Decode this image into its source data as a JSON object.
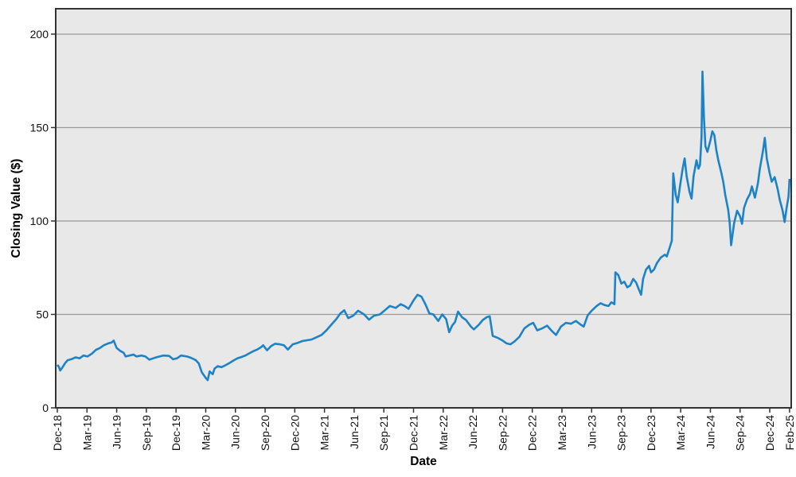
{
  "page": {
    "background": "#ffffff"
  },
  "chart_data": {
    "type": "line",
    "title": "",
    "xlabel": "Date",
    "ylabel": "Closing Value ($)",
    "x_unit": "months since Dec-2018",
    "xlim": [
      -0.16,
      74.17
    ],
    "ylim": [
      0,
      213.6
    ],
    "grid": "horizontal-only",
    "legend": "none",
    "colors": {
      "line": "#1d82c6",
      "plot_background": "#e8e8e8",
      "grid": "#999999",
      "border": "#333333",
      "tick_text": "#111111"
    },
    "line_width": 2.6,
    "y_ticks": [
      {
        "v": 0,
        "label": "0"
      },
      {
        "v": 50,
        "label": "50"
      },
      {
        "v": 100,
        "label": "100"
      },
      {
        "v": 150,
        "label": "150"
      },
      {
        "v": 200,
        "label": "200"
      }
    ],
    "x_ticks": [
      {
        "m": 0,
        "label": "Dec-18"
      },
      {
        "m": 3,
        "label": "Mar-19"
      },
      {
        "m": 6,
        "label": "Jun-19"
      },
      {
        "m": 9,
        "label": "Sep-19"
      },
      {
        "m": 12,
        "label": "Dec-19"
      },
      {
        "m": 15,
        "label": "Mar-20"
      },
      {
        "m": 18,
        "label": "Jun-20"
      },
      {
        "m": 21,
        "label": "Sep-20"
      },
      {
        "m": 24,
        "label": "Dec-20"
      },
      {
        "m": 27,
        "label": "Mar-21"
      },
      {
        "m": 30,
        "label": "Jun-21"
      },
      {
        "m": 33,
        "label": "Sep-21"
      },
      {
        "m": 36,
        "label": "Dec-21"
      },
      {
        "m": 39,
        "label": "Mar-22"
      },
      {
        "m": 42,
        "label": "Jun-22"
      },
      {
        "m": 45,
        "label": "Sep-22"
      },
      {
        "m": 48,
        "label": "Dec-22"
      },
      {
        "m": 51,
        "label": "Mar-23"
      },
      {
        "m": 54,
        "label": "Jun-23"
      },
      {
        "m": 57,
        "label": "Sep-23"
      },
      {
        "m": 60,
        "label": "Dec-23"
      },
      {
        "m": 63,
        "label": "Mar-24"
      },
      {
        "m": 66,
        "label": "Jun-24"
      },
      {
        "m": 69,
        "label": "Sep-24"
      },
      {
        "m": 72,
        "label": "Dec-24"
      },
      {
        "m": 74,
        "label": "Feb-25"
      }
    ],
    "series": [
      {
        "name": "Closing Value",
        "points": [
          [
            0,
            23
          ],
          [
            0.15,
            22
          ],
          [
            0.3,
            20
          ],
          [
            0.5,
            21.5
          ],
          [
            0.8,
            24
          ],
          [
            1.05,
            25.5
          ],
          [
            1.4,
            26
          ],
          [
            1.85,
            27
          ],
          [
            2.25,
            26.5
          ],
          [
            2.65,
            28
          ],
          [
            3.05,
            27.5
          ],
          [
            3.5,
            29
          ],
          [
            3.9,
            31
          ],
          [
            4.3,
            32
          ],
          [
            4.7,
            33.5
          ],
          [
            5.15,
            34.5
          ],
          [
            5.5,
            35
          ],
          [
            5.7,
            36
          ],
          [
            6.0,
            32
          ],
          [
            6.35,
            30.5
          ],
          [
            6.7,
            29.5
          ],
          [
            6.9,
            27.5
          ],
          [
            7.3,
            28
          ],
          [
            7.7,
            28.5
          ],
          [
            8.0,
            27.5
          ],
          [
            8.5,
            28
          ],
          [
            8.9,
            27.5
          ],
          [
            9.3,
            25.8
          ],
          [
            9.7,
            26.5
          ],
          [
            10.1,
            27.2
          ],
          [
            10.7,
            28
          ],
          [
            11.3,
            27.8
          ],
          [
            11.7,
            26
          ],
          [
            12.1,
            26.5
          ],
          [
            12.5,
            28
          ],
          [
            13.1,
            27.5
          ],
          [
            13.5,
            26.8
          ],
          [
            14.0,
            25.5
          ],
          [
            14.3,
            23.7
          ],
          [
            14.6,
            19
          ],
          [
            15.0,
            16
          ],
          [
            15.2,
            14.8
          ],
          [
            15.4,
            19.5
          ],
          [
            15.7,
            18
          ],
          [
            15.9,
            21
          ],
          [
            16.2,
            22.3
          ],
          [
            16.6,
            21.8
          ],
          [
            17.0,
            22.8
          ],
          [
            17.4,
            24
          ],
          [
            17.8,
            25.3
          ],
          [
            18.2,
            26.5
          ],
          [
            18.6,
            27.2
          ],
          [
            19.0,
            28
          ],
          [
            19.4,
            29.2
          ],
          [
            19.8,
            30.3
          ],
          [
            20.2,
            31.2
          ],
          [
            20.6,
            32.5
          ],
          [
            20.8,
            33.5
          ],
          [
            21.2,
            30.8
          ],
          [
            21.6,
            33
          ],
          [
            22.0,
            34.3
          ],
          [
            22.5,
            34
          ],
          [
            22.9,
            33.5
          ],
          [
            23.3,
            31.2
          ],
          [
            23.8,
            34
          ],
          [
            24.3,
            34.8
          ],
          [
            24.8,
            35.8
          ],
          [
            25.3,
            36.2
          ],
          [
            25.7,
            36.6
          ],
          [
            26.2,
            37.8
          ],
          [
            26.7,
            39
          ],
          [
            27.2,
            41.5
          ],
          [
            27.7,
            44.5
          ],
          [
            28.2,
            47.5
          ],
          [
            28.6,
            50.5
          ],
          [
            29.0,
            52.2
          ],
          [
            29.4,
            48
          ],
          [
            29.9,
            49.3
          ],
          [
            30.4,
            52
          ],
          [
            31.0,
            50
          ],
          [
            31.5,
            47.2
          ],
          [
            32.0,
            49.3
          ],
          [
            32.6,
            50
          ],
          [
            33.1,
            52.2
          ],
          [
            33.6,
            54.5
          ],
          [
            34.2,
            53.5
          ],
          [
            34.7,
            55.5
          ],
          [
            35.1,
            54.5
          ],
          [
            35.5,
            53
          ],
          [
            36.0,
            57.5
          ],
          [
            36.4,
            60.5
          ],
          [
            36.8,
            59.5
          ],
          [
            37.2,
            55.5
          ],
          [
            37.6,
            50.5
          ],
          [
            38.0,
            50
          ],
          [
            38.5,
            46.5
          ],
          [
            38.9,
            50
          ],
          [
            39.3,
            47.5
          ],
          [
            39.6,
            40.5
          ],
          [
            39.9,
            44
          ],
          [
            40.2,
            46
          ],
          [
            40.5,
            51.5
          ],
          [
            40.9,
            48.5
          ],
          [
            41.3,
            47
          ],
          [
            41.8,
            43.5
          ],
          [
            42.1,
            42
          ],
          [
            42.6,
            44.5
          ],
          [
            43.0,
            47
          ],
          [
            43.4,
            48.5
          ],
          [
            43.7,
            49
          ],
          [
            44.0,
            38.5
          ],
          [
            44.5,
            37.5
          ],
          [
            45.0,
            36
          ],
          [
            45.4,
            34.5
          ],
          [
            45.8,
            34
          ],
          [
            46.2,
            35.5
          ],
          [
            46.7,
            38
          ],
          [
            47.2,
            42.5
          ],
          [
            47.7,
            44.5
          ],
          [
            48.1,
            45.5
          ],
          [
            48.5,
            41.5
          ],
          [
            49.0,
            42.5
          ],
          [
            49.5,
            44
          ],
          [
            50.0,
            41
          ],
          [
            50.4,
            39
          ],
          [
            50.9,
            43.5
          ],
          [
            51.4,
            45.5
          ],
          [
            51.9,
            45
          ],
          [
            52.4,
            46.5
          ],
          [
            52.9,
            44.5
          ],
          [
            53.2,
            43.5
          ],
          [
            53.6,
            49.5
          ],
          [
            54.0,
            52
          ],
          [
            54.5,
            54.5
          ],
          [
            54.9,
            56
          ],
          [
            55.3,
            55
          ],
          [
            55.7,
            54.5
          ],
          [
            56.0,
            56.5
          ],
          [
            56.3,
            55.5
          ],
          [
            56.4,
            72.5
          ],
          [
            56.7,
            71
          ],
          [
            57.0,
            66.5
          ],
          [
            57.3,
            67.5
          ],
          [
            57.6,
            64.5
          ],
          [
            57.9,
            65.5
          ],
          [
            58.2,
            69
          ],
          [
            58.5,
            67
          ],
          [
            58.8,
            63
          ],
          [
            59.0,
            60.5
          ],
          [
            59.2,
            69
          ],
          [
            59.5,
            74
          ],
          [
            59.8,
            76
          ],
          [
            60.0,
            72.5
          ],
          [
            60.3,
            74
          ],
          [
            60.6,
            77.5
          ],
          [
            61.0,
            80.5
          ],
          [
            61.4,
            82
          ],
          [
            61.6,
            81
          ],
          [
            61.9,
            86
          ],
          [
            62.1,
            89.5
          ],
          [
            62.25,
            125.5
          ],
          [
            62.5,
            114
          ],
          [
            62.7,
            110
          ],
          [
            63.0,
            121
          ],
          [
            63.2,
            128
          ],
          [
            63.4,
            133.5
          ],
          [
            63.6,
            124
          ],
          [
            63.9,
            115.5
          ],
          [
            64.1,
            112
          ],
          [
            64.3,
            124
          ],
          [
            64.6,
            132.5
          ],
          [
            64.8,
            128
          ],
          [
            64.95,
            130
          ],
          [
            65.1,
            145
          ],
          [
            65.2,
            180
          ],
          [
            65.35,
            155
          ],
          [
            65.5,
            140
          ],
          [
            65.7,
            137
          ],
          [
            66.0,
            143
          ],
          [
            66.2,
            148
          ],
          [
            66.4,
            146
          ],
          [
            66.6,
            138
          ],
          [
            66.8,
            132.5
          ],
          [
            67.1,
            126
          ],
          [
            67.3,
            121
          ],
          [
            67.5,
            114
          ],
          [
            67.8,
            106
          ],
          [
            67.95,
            99
          ],
          [
            68.1,
            87
          ],
          [
            68.4,
            99
          ],
          [
            68.7,
            105.5
          ],
          [
            69.0,
            102.5
          ],
          [
            69.2,
            98.5
          ],
          [
            69.4,
            107
          ],
          [
            69.7,
            111.5
          ],
          [
            70.0,
            114.5
          ],
          [
            70.2,
            118.5
          ],
          [
            70.5,
            112.5
          ],
          [
            70.8,
            120
          ],
          [
            71.0,
            128
          ],
          [
            71.3,
            137
          ],
          [
            71.5,
            144.5
          ],
          [
            71.7,
            133.5
          ],
          [
            72.0,
            125.5
          ],
          [
            72.2,
            121
          ],
          [
            72.5,
            123.5
          ],
          [
            72.8,
            117
          ],
          [
            73.0,
            111.5
          ],
          [
            73.3,
            105.5
          ],
          [
            73.5,
            99.5
          ],
          [
            73.7,
            107
          ],
          [
            73.9,
            113
          ],
          [
            74.0,
            122.5
          ]
        ]
      }
    ]
  }
}
